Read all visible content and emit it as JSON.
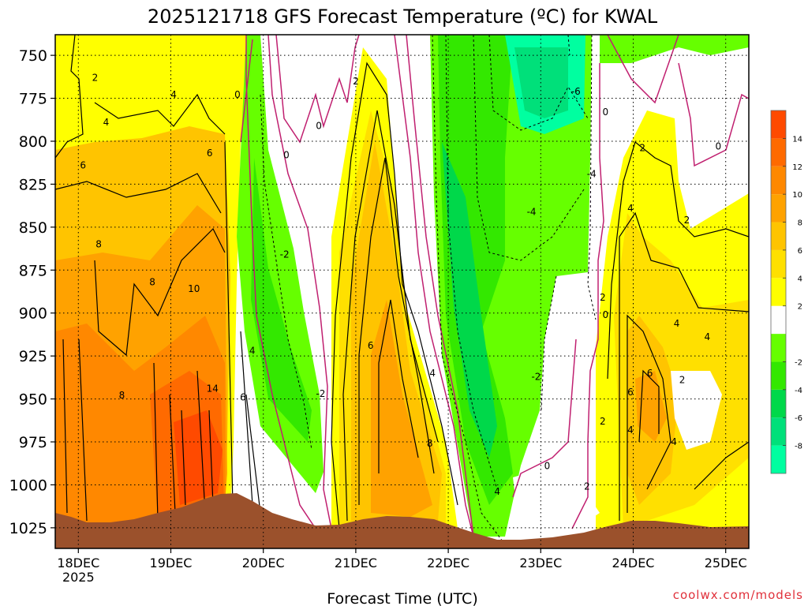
{
  "chart_data": {
    "type": "heatmap",
    "title": "2025121718 GFS Forecast Temperature (ºC) for KWAL",
    "xlabel": "Forecast Time (UTC)",
    "credit": "coolwx.com/models",
    "x_ticks": [
      "18DEC",
      "19DEC",
      "20DEC",
      "21DEC",
      "22DEC",
      "23DEC",
      "24DEC",
      "25DEC"
    ],
    "x_year_label": "2025",
    "x_range_days": [
      -0.25,
      7.25
    ],
    "y_ticks": [
      750,
      775,
      800,
      825,
      850,
      875,
      900,
      925,
      950,
      975,
      1000,
      1025
    ],
    "y_tick_labels": [
      "750",
      "775",
      "800",
      "825",
      "850",
      "875",
      "900",
      "925",
      "950",
      "975",
      "1000",
      "1025"
    ],
    "ylim_hpa": [
      738,
      1037
    ],
    "colorbar": {
      "bounds": [
        -10,
        -8,
        -6,
        -4,
        -2,
        0,
        2,
        4,
        6,
        8,
        10,
        12,
        14,
        16
      ],
      "colors": [
        "#00ffa0",
        "#00e07a",
        "#00d84a",
        "#33e800",
        "#66ff00",
        "#ffffff",
        "#ffff00",
        "#ffe000",
        "#ffc400",
        "#ffa200",
        "#ff8800",
        "#ff6a00",
        "#ff4a00"
      ],
      "labels": [
        "-8",
        "-6",
        "-4",
        "-2",
        "2",
        "4",
        "6",
        "8",
        "10",
        "12",
        "14"
      ],
      "label_values": [
        -8,
        -6,
        -4,
        -2,
        2,
        4,
        6,
        8,
        10,
        12,
        14
      ]
    },
    "contour_labels": [
      {
        "text": "2",
        "t": 0.18,
        "p": 763
      },
      {
        "text": "4",
        "t": 1.03,
        "p": 773
      },
      {
        "text": "4",
        "t": 0.3,
        "p": 789
      },
      {
        "text": "0",
        "t": 1.72,
        "p": 773
      },
      {
        "text": "6",
        "t": 1.42,
        "p": 807
      },
      {
        "text": "6",
        "t": 0.05,
        "p": 814
      },
      {
        "text": "8",
        "t": 0.22,
        "p": 860
      },
      {
        "text": "8",
        "t": 0.8,
        "p": 882
      },
      {
        "text": "10",
        "t": 1.25,
        "p": 886
      },
      {
        "text": "14",
        "t": 1.45,
        "p": 944
      },
      {
        "text": "8",
        "t": 0.47,
        "p": 948
      },
      {
        "text": "6",
        "t": 1.78,
        "p": 949
      },
      {
        "text": "4",
        "t": 1.88,
        "p": 922
      },
      {
        "text": "0",
        "t": 2.6,
        "p": 791
      },
      {
        "text": "0",
        "t": 2.25,
        "p": 808
      },
      {
        "text": "-2",
        "t": 2.23,
        "p": 866
      },
      {
        "text": "-2",
        "t": 2.62,
        "p": 947
      },
      {
        "text": "2",
        "t": 3.0,
        "p": 765
      },
      {
        "text": "6",
        "t": 3.16,
        "p": 919
      },
      {
        "text": "4",
        "t": 3.83,
        "p": 935
      },
      {
        "text": "8",
        "t": 3.8,
        "p": 976
      },
      {
        "text": "-6",
        "t": 5.38,
        "p": 771
      },
      {
        "text": "-4",
        "t": 5.55,
        "p": 819
      },
      {
        "text": "-4",
        "t": 4.9,
        "p": 841
      },
      {
        "text": "0",
        "t": 5.7,
        "p": 783
      },
      {
        "text": "2",
        "t": 6.1,
        "p": 804
      },
      {
        "text": "0",
        "t": 6.92,
        "p": 803
      },
      {
        "text": "4",
        "t": 5.97,
        "p": 839
      },
      {
        "text": "2",
        "t": 6.58,
        "p": 846
      },
      {
        "text": "2",
        "t": 5.67,
        "p": 891
      },
      {
        "text": "0",
        "t": 5.7,
        "p": 901
      },
      {
        "text": "-2",
        "t": 4.95,
        "p": 937
      },
      {
        "text": "4",
        "t": 6.47,
        "p": 906
      },
      {
        "text": "4",
        "t": 6.8,
        "p": 914
      },
      {
        "text": "6",
        "t": 6.18,
        "p": 935
      },
      {
        "text": "6",
        "t": 5.97,
        "p": 946
      },
      {
        "text": "2",
        "t": 6.53,
        "p": 939
      },
      {
        "text": "4",
        "t": 5.97,
        "p": 968
      },
      {
        "text": "4",
        "t": 6.44,
        "p": 975
      },
      {
        "text": "2",
        "t": 5.67,
        "p": 963
      },
      {
        "text": "2",
        "t": 5.5,
        "p": 1001
      },
      {
        "text": "0",
        "t": 5.07,
        "p": 989
      },
      {
        "text": "4",
        "t": 4.53,
        "p": 1004
      }
    ]
  }
}
